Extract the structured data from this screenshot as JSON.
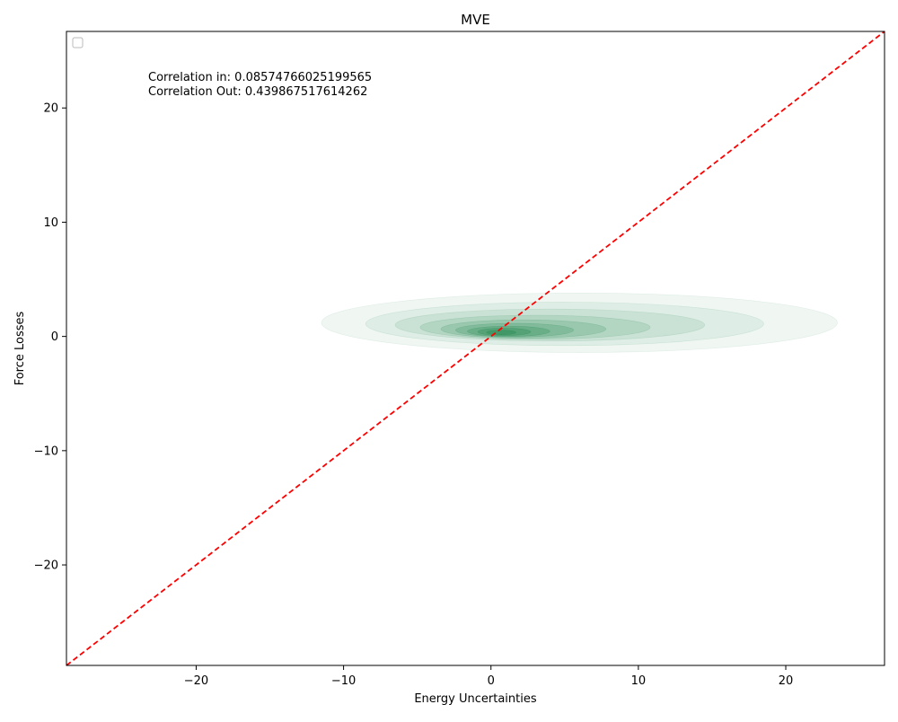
{
  "chart_data": {
    "type": "kde",
    "title": "MVE",
    "xlabel": "Energy Uncertainties",
    "ylabel": "Force Losses",
    "xlim": [
      -28.8,
      26.7
    ],
    "ylim": [
      -28.8,
      26.7
    ],
    "xticks": [
      -20,
      -10,
      0,
      10,
      20
    ],
    "yticks": [
      -20,
      -10,
      0,
      10,
      20
    ],
    "tick_labels": {
      "x": [
        "−20",
        "−10",
        "0",
        "10",
        "20"
      ],
      "y": [
        "−20",
        "−10",
        "0",
        "10",
        "20"
      ]
    },
    "annotations": [
      "Correlation in: 0.08574766025199565",
      "Correlation Out: 0.439867517614262"
    ],
    "reference_line": {
      "style": "dashed",
      "color": "#ff0000",
      "from": [
        -28.8,
        -28.8
      ],
      "to": [
        26.7,
        26.7
      ]
    },
    "density_levels": [
      {
        "cx": 6,
        "cy": 1.2,
        "rx": 17.5,
        "ry": 2.6,
        "opacity": 0.07
      },
      {
        "cx": 5,
        "cy": 1.1,
        "rx": 13.5,
        "ry": 1.9,
        "opacity": 0.09
      },
      {
        "cx": 4,
        "cy": 1.0,
        "rx": 10.5,
        "ry": 1.4,
        "opacity": 0.11
      },
      {
        "cx": 3,
        "cy": 0.8,
        "rx": 7.8,
        "ry": 1.05,
        "opacity": 0.14
      },
      {
        "cx": 2.2,
        "cy": 0.65,
        "rx": 5.6,
        "ry": 0.8,
        "opacity": 0.18
      },
      {
        "cx": 1.6,
        "cy": 0.55,
        "rx": 4.0,
        "ry": 0.6,
        "opacity": 0.22
      },
      {
        "cx": 1.2,
        "cy": 0.45,
        "rx": 2.8,
        "ry": 0.45,
        "opacity": 0.28
      },
      {
        "cx": 0.9,
        "cy": 0.4,
        "rx": 1.8,
        "ry": 0.32,
        "opacity": 0.35
      },
      {
        "cx": 0.7,
        "cy": 0.35,
        "rx": 1.0,
        "ry": 0.2,
        "opacity": 0.45
      }
    ],
    "fill_color": "#2e8b57",
    "legend": {
      "placement": "top-left",
      "entries": []
    },
    "grid": false
  }
}
